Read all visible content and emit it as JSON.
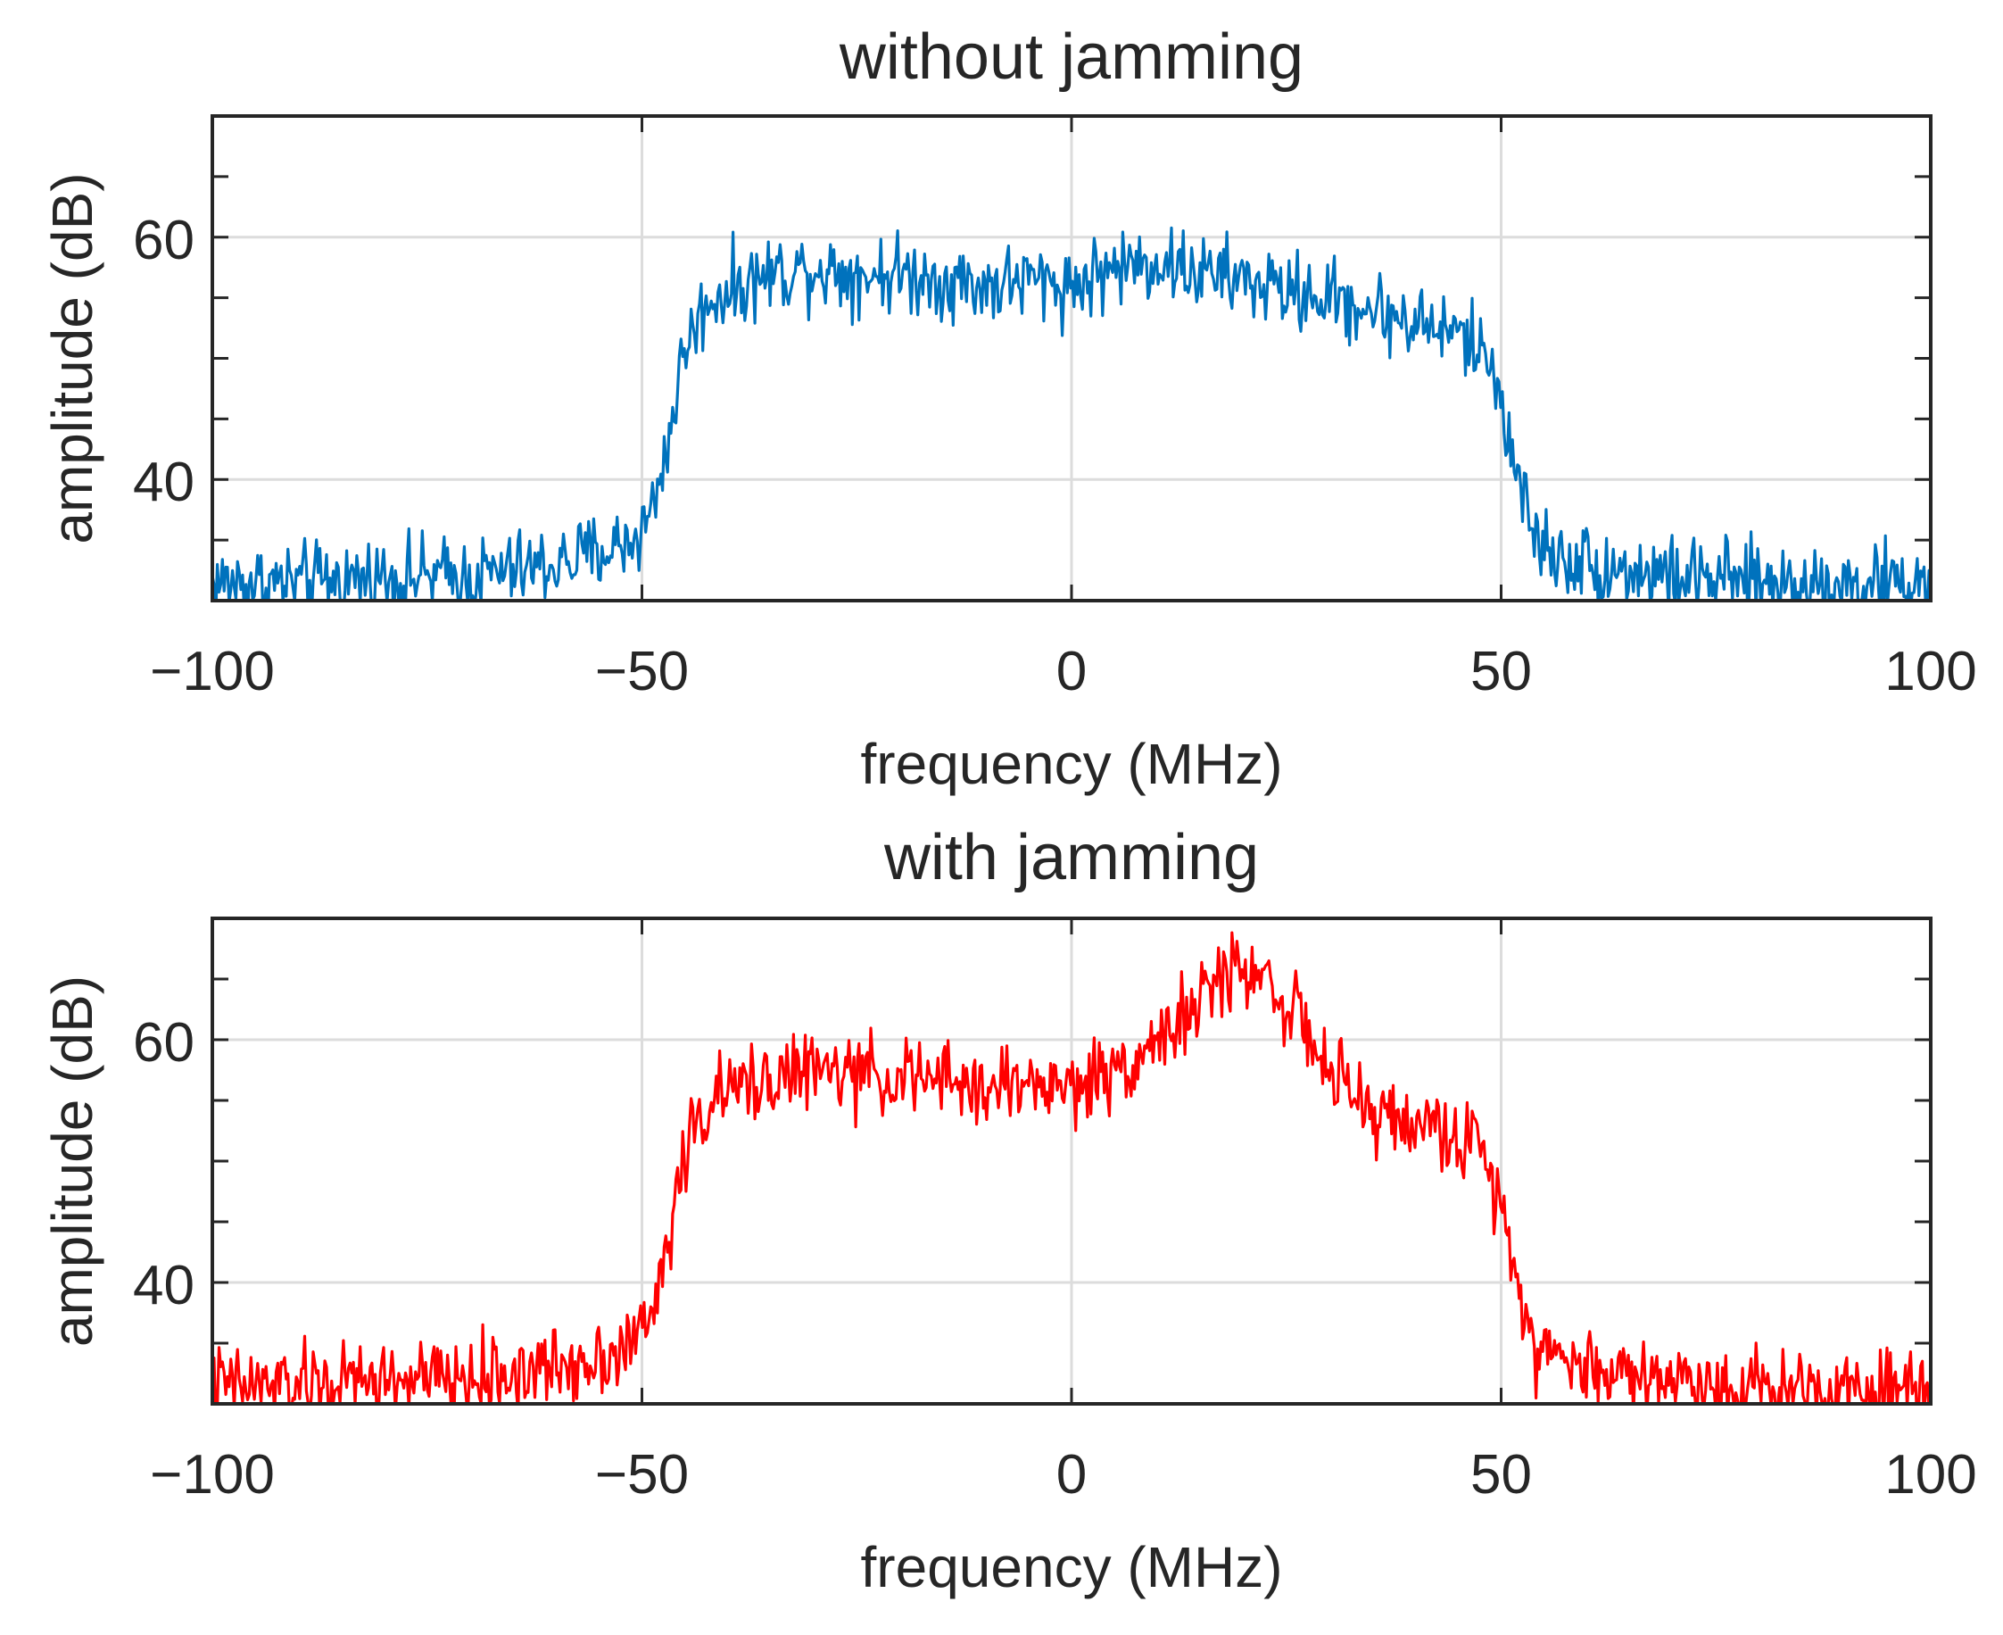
{
  "chart_data": [
    {
      "type": "line",
      "title": "without jamming",
      "xlabel": "frequency (MHz)",
      "ylabel": "amplitude (dB)",
      "xlim": [
        -100,
        100
      ],
      "ylim": [
        30,
        70
      ],
      "xticks": [
        -100,
        -50,
        0,
        50,
        100
      ],
      "xtick_labels": [
        "−100",
        "−50",
        "0",
        "50",
        "100"
      ],
      "yticks": [
        40,
        60
      ],
      "ytick_labels": [
        "40",
        "60"
      ],
      "grid": true,
      "series": [
        {
          "name": "without jamming",
          "color": "#0072BD",
          "x": [
            -100,
            -90,
            -80,
            -70,
            -60,
            -55,
            -51,
            -49,
            -47,
            -45,
            -42,
            -35,
            -30,
            -25,
            -20,
            -15,
            -10,
            -5,
            0,
            5,
            10,
            15,
            20,
            25,
            30,
            35,
            40,
            45,
            48,
            50,
            52,
            54,
            56,
            60,
            65,
            70,
            80,
            90,
            100
          ],
          "y": [
            31.5,
            31.5,
            32,
            32,
            33,
            34,
            35,
            37,
            43,
            51,
            55,
            57,
            57.5,
            57,
            57,
            56.5,
            56,
            56.5,
            56,
            57.5,
            58,
            57,
            56.5,
            55.5,
            55,
            54,
            53,
            52,
            50.5,
            47,
            40,
            35,
            34,
            33,
            32.5,
            32,
            31.5,
            31.5,
            31.5
          ],
          "noise_amplitude_db": 1.6,
          "samples": 1024
        }
      ]
    },
    {
      "type": "line",
      "title": "with jamming",
      "xlabel": "frequency (MHz)",
      "ylabel": "amplitude (dB)",
      "xlim": [
        -100,
        100
      ],
      "ylim": [
        30,
        70
      ],
      "xticks": [
        -100,
        -50,
        0,
        50,
        100
      ],
      "xtick_labels": [
        "−100",
        "−50",
        "0",
        "50",
        "100"
      ],
      "yticks": [
        40,
        60
      ],
      "ytick_labels": [
        "40",
        "60"
      ],
      "grid": true,
      "series": [
        {
          "name": "with jamming",
          "color": "#FF0000",
          "x": [
            -100,
            -90,
            -80,
            -70,
            -60,
            -55,
            -51,
            -49,
            -47,
            -45,
            -42,
            -35,
            -30,
            -25,
            -20,
            -15,
            -10,
            -5,
            0,
            5,
            10,
            15,
            18,
            20,
            23,
            25,
            28,
            30,
            35,
            40,
            45,
            48,
            50,
            52,
            54,
            56,
            60,
            65,
            70,
            80,
            90,
            100
          ],
          "y": [
            31.5,
            31.5,
            32,
            32,
            33,
            34,
            35,
            37,
            43,
            51,
            55,
            57,
            57.5,
            57,
            57,
            56.5,
            56,
            56.5,
            56,
            57.5,
            60,
            63,
            65.5,
            66,
            65,
            63,
            60,
            57,
            54,
            53,
            52,
            50.5,
            47,
            40,
            35,
            34,
            33,
            32.5,
            32,
            31.5,
            31.5,
            31.5
          ],
          "noise_amplitude_db": 1.6,
          "samples": 1024
        }
      ]
    }
  ]
}
